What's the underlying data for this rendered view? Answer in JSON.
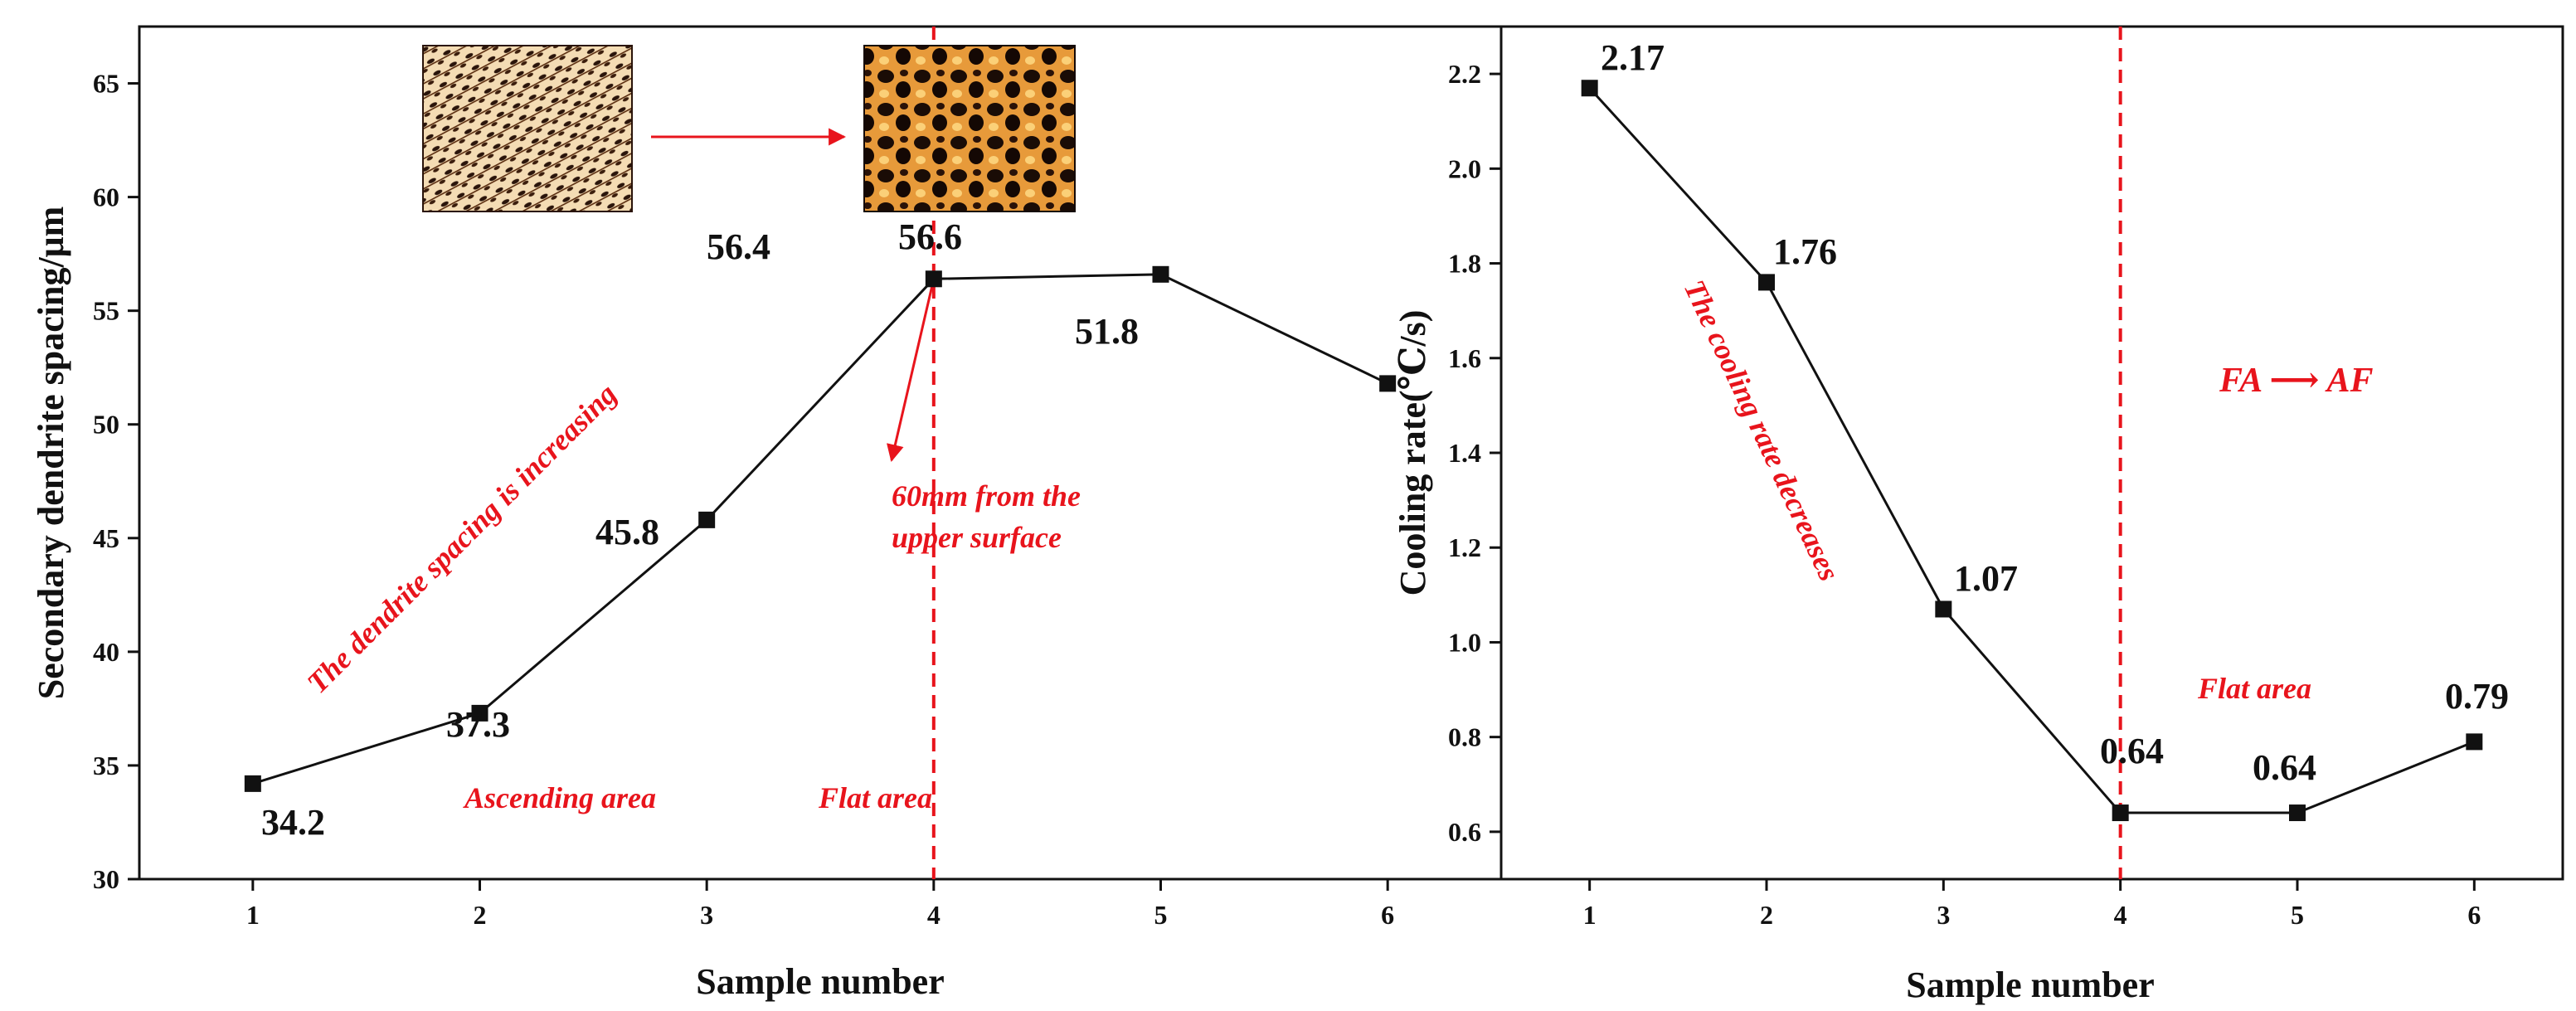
{
  "colors": {
    "line": "#111111",
    "accent": "#e8141c",
    "marker": "#111111"
  },
  "chart_data": [
    {
      "type": "line",
      "xlabel": "Sample number",
      "ylabel": "Secondary dendrite spacing/μm",
      "xlim": [
        0.5,
        6.5
      ],
      "ylim": [
        30,
        67.5
      ],
      "xticks": [
        1,
        2,
        3,
        4,
        5,
        6
      ],
      "yticks": [
        30,
        35,
        40,
        45,
        50,
        55,
        60,
        65
      ],
      "x": [
        1,
        2,
        3,
        4,
        5,
        6
      ],
      "series": [
        {
          "values": [
            34.2,
            37.3,
            45.8,
            56.4,
            56.6,
            51.8
          ]
        }
      ],
      "data_labels": [
        "34.2",
        "37.3",
        "45.8",
        "56.4",
        "56.6",
        "51.8"
      ],
      "divider_x": 4,
      "annotations": {
        "trend": "The dendrite spacing is increasing",
        "left_region": "Ascending area",
        "right_region": "Flat area",
        "position_line1": "60mm from the",
        "position_line2": "upper surface"
      },
      "insets": [
        "micrograph-fine-dendrites",
        "micrograph-coarse-dendrites"
      ]
    },
    {
      "type": "line",
      "xlabel": "Sample number",
      "ylabel": "Cooling rate(℃/s)",
      "xlim": [
        0.5,
        6.5
      ],
      "ylim": [
        0.5,
        2.3
      ],
      "xticks": [
        1,
        2,
        3,
        4,
        5,
        6
      ],
      "yticks": [
        0.6,
        0.8,
        1.0,
        1.2,
        1.4,
        1.6,
        1.8,
        2.0,
        2.2
      ],
      "x": [
        1,
        2,
        3,
        4,
        5,
        6
      ],
      "series": [
        {
          "values": [
            2.17,
            1.76,
            1.07,
            0.64,
            0.64,
            0.79
          ]
        }
      ],
      "data_labels": [
        "2.17",
        "1.76",
        "1.07",
        "0.64",
        "0.64",
        "0.79"
      ],
      "divider_x": 4,
      "annotations": {
        "trend": "The cooling rate decreases",
        "right_region": "Flat area",
        "transition": "FA ⟶ AF"
      }
    }
  ]
}
